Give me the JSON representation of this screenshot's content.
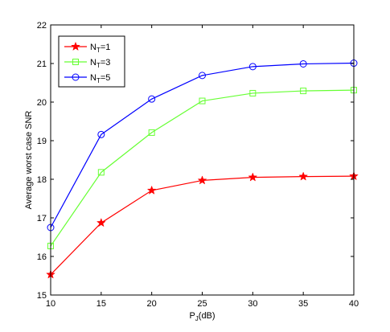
{
  "chart_data": {
    "type": "line",
    "title": "",
    "xlabel": "P",
    "xlabel_sub": "J",
    "xlabel_suffix": "(dB)",
    "ylabel": "Average worst case SNR",
    "xlim": [
      10,
      40
    ],
    "ylim": [
      15,
      22
    ],
    "xticks": [
      10,
      15,
      20,
      25,
      30,
      35,
      40
    ],
    "yticks": [
      15,
      16,
      17,
      18,
      19,
      20,
      21,
      22
    ],
    "grid": false,
    "legend_position": "top-left",
    "x": [
      10,
      15,
      20,
      25,
      30,
      35,
      40
    ],
    "series": [
      {
        "name_main": "N",
        "name_sub": "T",
        "name_suffix": "=1",
        "color": "#ff0000",
        "marker": "star",
        "values": [
          15.53,
          16.87,
          17.71,
          17.97,
          18.05,
          18.07,
          18.08
        ]
      },
      {
        "name_main": "N",
        "name_sub": "T",
        "name_suffix": "=3",
        "color": "#66ff33",
        "marker": "square",
        "values": [
          16.27,
          18.18,
          19.21,
          20.03,
          20.23,
          20.29,
          20.31
        ]
      },
      {
        "name_main": "N",
        "name_sub": "T",
        "name_suffix": "=5",
        "color": "#0000ff",
        "marker": "circle",
        "values": [
          16.75,
          19.16,
          20.08,
          20.69,
          20.92,
          20.99,
          21.01
        ]
      }
    ]
  }
}
